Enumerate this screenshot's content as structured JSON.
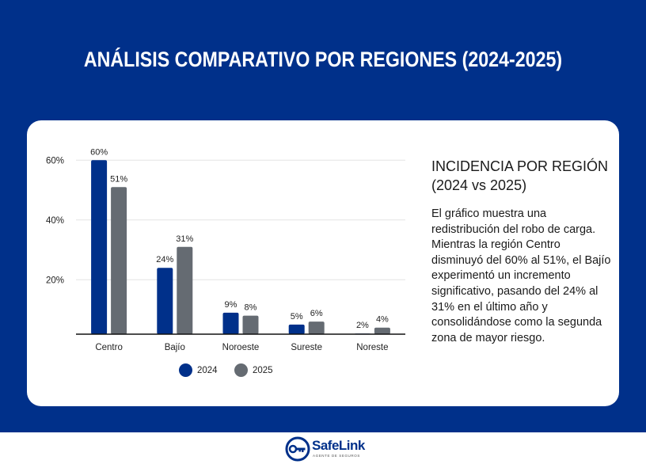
{
  "page": {
    "title": "ANÁLISIS COMPARATIVO POR REGIONES (2024-2025)",
    "colors": {
      "background": "#00308a",
      "card": "#ffffff",
      "series_2024": "#00308a",
      "series_2025": "#656b72"
    }
  },
  "chart_data": {
    "type": "bar",
    "title": "",
    "xlabel": "",
    "ylabel": "",
    "categories": [
      "Centro",
      "Bajío",
      "Noroeste",
      "Sureste",
      "Noreste"
    ],
    "series": [
      {
        "name": "2024",
        "values": [
          60,
          24,
          9,
          5,
          2
        ],
        "labels": [
          "60%",
          "24%",
          "9%",
          "5%",
          "2%"
        ],
        "color": "#00308a"
      },
      {
        "name": "2025",
        "values": [
          51,
          31,
          8,
          6,
          4
        ],
        "labels": [
          "51%",
          "31%",
          "8%",
          "6%",
          "4%"
        ],
        "color": "#656b72"
      }
    ],
    "yticks": [
      20,
      40,
      60
    ],
    "ytick_labels": [
      "20%",
      "40%",
      "60%"
    ],
    "ylim": [
      1.8,
      65
    ],
    "grid": true,
    "legend": "bottom-center"
  },
  "side": {
    "title_line1": "INCIDENCIA POR REGIÓN",
    "title_line2": "(2024 vs 2025)",
    "body": "El gráfico muestra una redistribución del robo de carga. Mientras la región Centro disminuyó del 60% al 51%, el Bajío experimentó un incremento significativo, pasando del 24% al 31% en el último año y consolidándose como la segunda zona de mayor riesgo."
  },
  "logo": {
    "name": "SafeLink",
    "tagline": "AGENTE DE SEGUROS",
    "icon": "key-icon"
  }
}
